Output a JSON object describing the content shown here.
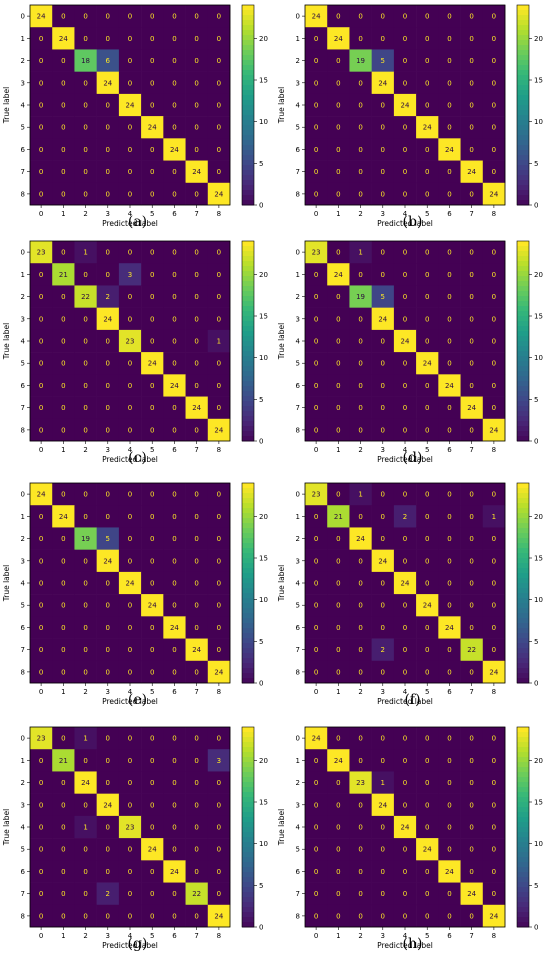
{
  "figure": {
    "xlabel": "Predicted label",
    "ylabel": "True label",
    "tick_labels": [
      "0",
      "1",
      "2",
      "3",
      "4",
      "5",
      "6",
      "7",
      "8"
    ],
    "colormap": "viridis",
    "colors": {
      "low": "#440154",
      "mid": "#21918c",
      "high": "#fde725"
    }
  },
  "chart_data": [
    {
      "type": "heatmap",
      "caption": "(a)",
      "xlabel": "Predicted label",
      "ylabel": "True label",
      "categories": [
        "0",
        "1",
        "2",
        "3",
        "4",
        "5",
        "6",
        "7",
        "8"
      ],
      "colorbar_ticks": [
        0,
        5,
        10,
        15,
        20
      ],
      "matrix": [
        [
          24,
          0,
          0,
          0,
          0,
          0,
          0,
          0,
          0
        ],
        [
          0,
          24,
          0,
          0,
          0,
          0,
          0,
          0,
          0
        ],
        [
          0,
          0,
          18,
          6,
          0,
          0,
          0,
          0,
          0
        ],
        [
          0,
          0,
          0,
          24,
          0,
          0,
          0,
          0,
          0
        ],
        [
          0,
          0,
          0,
          0,
          24,
          0,
          0,
          0,
          0
        ],
        [
          0,
          0,
          0,
          0,
          0,
          24,
          0,
          0,
          0
        ],
        [
          0,
          0,
          0,
          0,
          0,
          0,
          24,
          0,
          0
        ],
        [
          0,
          0,
          0,
          0,
          0,
          0,
          0,
          24,
          0
        ],
        [
          0,
          0,
          0,
          0,
          0,
          0,
          0,
          0,
          24
        ]
      ]
    },
    {
      "type": "heatmap",
      "caption": "(b)",
      "xlabel": "Predicted label",
      "ylabel": "True label",
      "categories": [
        "0",
        "1",
        "2",
        "3",
        "4",
        "5",
        "6",
        "7",
        "8"
      ],
      "colorbar_ticks": [
        0,
        5,
        10,
        15,
        20
      ],
      "matrix": [
        [
          24,
          0,
          0,
          0,
          0,
          0,
          0,
          0,
          0
        ],
        [
          0,
          24,
          0,
          0,
          0,
          0,
          0,
          0,
          0
        ],
        [
          0,
          0,
          19,
          5,
          0,
          0,
          0,
          0,
          0
        ],
        [
          0,
          0,
          0,
          24,
          0,
          0,
          0,
          0,
          0
        ],
        [
          0,
          0,
          0,
          0,
          24,
          0,
          0,
          0,
          0
        ],
        [
          0,
          0,
          0,
          0,
          0,
          24,
          0,
          0,
          0
        ],
        [
          0,
          0,
          0,
          0,
          0,
          0,
          24,
          0,
          0
        ],
        [
          0,
          0,
          0,
          0,
          0,
          0,
          0,
          24,
          0
        ],
        [
          0,
          0,
          0,
          0,
          0,
          0,
          0,
          0,
          24
        ]
      ]
    },
    {
      "type": "heatmap",
      "caption": "(c)",
      "xlabel": "Predicted label",
      "ylabel": "True label",
      "categories": [
        "0",
        "1",
        "2",
        "3",
        "4",
        "5",
        "6",
        "7",
        "8"
      ],
      "colorbar_ticks": [
        0,
        5,
        10,
        15,
        20
      ],
      "matrix": [
        [
          23,
          0,
          1,
          0,
          0,
          0,
          0,
          0,
          0
        ],
        [
          0,
          21,
          0,
          0,
          3,
          0,
          0,
          0,
          0
        ],
        [
          0,
          0,
          22,
          2,
          0,
          0,
          0,
          0,
          0
        ],
        [
          0,
          0,
          0,
          24,
          0,
          0,
          0,
          0,
          0
        ],
        [
          0,
          0,
          0,
          0,
          23,
          0,
          0,
          0,
          1
        ],
        [
          0,
          0,
          0,
          0,
          0,
          24,
          0,
          0,
          0
        ],
        [
          0,
          0,
          0,
          0,
          0,
          0,
          24,
          0,
          0
        ],
        [
          0,
          0,
          0,
          0,
          0,
          0,
          0,
          24,
          0
        ],
        [
          0,
          0,
          0,
          0,
          0,
          0,
          0,
          0,
          24
        ]
      ]
    },
    {
      "type": "heatmap",
      "caption": "(d)",
      "xlabel": "Predicted label",
      "ylabel": "True label",
      "categories": [
        "0",
        "1",
        "2",
        "3",
        "4",
        "5",
        "6",
        "7",
        "8"
      ],
      "colorbar_ticks": [
        0,
        5,
        10,
        15,
        20
      ],
      "matrix": [
        [
          23,
          0,
          1,
          0,
          0,
          0,
          0,
          0,
          0
        ],
        [
          0,
          24,
          0,
          0,
          0,
          0,
          0,
          0,
          0
        ],
        [
          0,
          0,
          19,
          5,
          0,
          0,
          0,
          0,
          0
        ],
        [
          0,
          0,
          0,
          24,
          0,
          0,
          0,
          0,
          0
        ],
        [
          0,
          0,
          0,
          0,
          24,
          0,
          0,
          0,
          0
        ],
        [
          0,
          0,
          0,
          0,
          0,
          24,
          0,
          0,
          0
        ],
        [
          0,
          0,
          0,
          0,
          0,
          0,
          24,
          0,
          0
        ],
        [
          0,
          0,
          0,
          0,
          0,
          0,
          0,
          24,
          0
        ],
        [
          0,
          0,
          0,
          0,
          0,
          0,
          0,
          0,
          24
        ]
      ]
    },
    {
      "type": "heatmap",
      "caption": "(e)",
      "xlabel": "Predicted label",
      "ylabel": "True label",
      "categories": [
        "0",
        "1",
        "2",
        "3",
        "4",
        "5",
        "6",
        "7",
        "8"
      ],
      "colorbar_ticks": [
        0,
        5,
        10,
        15,
        20
      ],
      "matrix": [
        [
          24,
          0,
          0,
          0,
          0,
          0,
          0,
          0,
          0
        ],
        [
          0,
          24,
          0,
          0,
          0,
          0,
          0,
          0,
          0
        ],
        [
          0,
          0,
          19,
          5,
          0,
          0,
          0,
          0,
          0
        ],
        [
          0,
          0,
          0,
          24,
          0,
          0,
          0,
          0,
          0
        ],
        [
          0,
          0,
          0,
          0,
          24,
          0,
          0,
          0,
          0
        ],
        [
          0,
          0,
          0,
          0,
          0,
          24,
          0,
          0,
          0
        ],
        [
          0,
          0,
          0,
          0,
          0,
          0,
          24,
          0,
          0
        ],
        [
          0,
          0,
          0,
          0,
          0,
          0,
          0,
          24,
          0
        ],
        [
          0,
          0,
          0,
          0,
          0,
          0,
          0,
          0,
          24
        ]
      ]
    },
    {
      "type": "heatmap",
      "caption": "(f)",
      "xlabel": "Predicted label",
      "ylabel": "True label",
      "categories": [
        "0",
        "1",
        "2",
        "3",
        "4",
        "5",
        "6",
        "7",
        "8"
      ],
      "colorbar_ticks": [
        0,
        5,
        10,
        15,
        20
      ],
      "matrix": [
        [
          23,
          0,
          1,
          0,
          0,
          0,
          0,
          0,
          0
        ],
        [
          0,
          21,
          0,
          0,
          2,
          0,
          0,
          0,
          1
        ],
        [
          0,
          0,
          24,
          0,
          0,
          0,
          0,
          0,
          0
        ],
        [
          0,
          0,
          0,
          24,
          0,
          0,
          0,
          0,
          0
        ],
        [
          0,
          0,
          0,
          0,
          24,
          0,
          0,
          0,
          0
        ],
        [
          0,
          0,
          0,
          0,
          0,
          24,
          0,
          0,
          0
        ],
        [
          0,
          0,
          0,
          0,
          0,
          0,
          24,
          0,
          0
        ],
        [
          0,
          0,
          0,
          2,
          0,
          0,
          0,
          22,
          0
        ],
        [
          0,
          0,
          0,
          0,
          0,
          0,
          0,
          0,
          24
        ]
      ]
    },
    {
      "type": "heatmap",
      "caption": "(g)",
      "xlabel": "Predicted label",
      "ylabel": "True label",
      "categories": [
        "0",
        "1",
        "2",
        "3",
        "4",
        "5",
        "6",
        "7",
        "8"
      ],
      "colorbar_ticks": [
        0,
        5,
        10,
        15,
        20
      ],
      "matrix": [
        [
          23,
          0,
          1,
          0,
          0,
          0,
          0,
          0,
          0
        ],
        [
          0,
          21,
          0,
          0,
          0,
          0,
          0,
          0,
          3
        ],
        [
          0,
          0,
          24,
          0,
          0,
          0,
          0,
          0,
          0
        ],
        [
          0,
          0,
          0,
          24,
          0,
          0,
          0,
          0,
          0
        ],
        [
          0,
          0,
          1,
          0,
          23,
          0,
          0,
          0,
          0
        ],
        [
          0,
          0,
          0,
          0,
          0,
          24,
          0,
          0,
          0
        ],
        [
          0,
          0,
          0,
          0,
          0,
          0,
          24,
          0,
          0
        ],
        [
          0,
          0,
          0,
          2,
          0,
          0,
          0,
          22,
          0
        ],
        [
          0,
          0,
          0,
          0,
          0,
          0,
          0,
          0,
          24
        ]
      ]
    },
    {
      "type": "heatmap",
      "caption": "(h)",
      "xlabel": "Predicted label",
      "ylabel": "True label",
      "categories": [
        "0",
        "1",
        "2",
        "3",
        "4",
        "5",
        "6",
        "7",
        "8"
      ],
      "colorbar_ticks": [
        0,
        5,
        10,
        15,
        20
      ],
      "matrix": [
        [
          24,
          0,
          0,
          0,
          0,
          0,
          0,
          0,
          0
        ],
        [
          0,
          24,
          0,
          0,
          0,
          0,
          0,
          0,
          0
        ],
        [
          0,
          0,
          23,
          1,
          0,
          0,
          0,
          0,
          0
        ],
        [
          0,
          0,
          0,
          24,
          0,
          0,
          0,
          0,
          0
        ],
        [
          0,
          0,
          0,
          0,
          24,
          0,
          0,
          0,
          0
        ],
        [
          0,
          0,
          0,
          0,
          0,
          24,
          0,
          0,
          0
        ],
        [
          0,
          0,
          0,
          0,
          0,
          0,
          24,
          0,
          0
        ],
        [
          0,
          0,
          0,
          0,
          0,
          0,
          0,
          24,
          0
        ],
        [
          0,
          0,
          0,
          0,
          0,
          0,
          0,
          0,
          24
        ]
      ]
    }
  ]
}
